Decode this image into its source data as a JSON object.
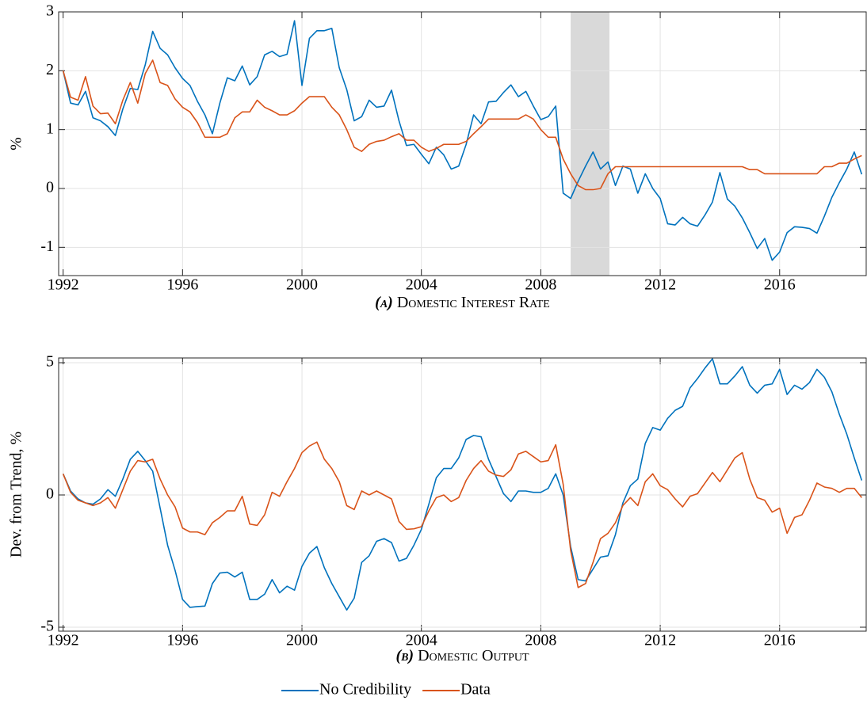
{
  "chart_data": [
    {
      "type": "line",
      "label": "(a)",
      "title": "Domestic Interest Rate",
      "ylabel": "%",
      "x": [
        1992,
        1992.25,
        1992.5,
        1992.75,
        1993,
        1993.25,
        1993.5,
        1993.75,
        1994,
        1994.25,
        1994.5,
        1994.75,
        1995,
        1995.25,
        1995.5,
        1995.75,
        1996,
        1996.25,
        1996.5,
        1996.75,
        1997,
        1997.25,
        1997.5,
        1997.75,
        1998,
        1998.25,
        1998.5,
        1998.75,
        1999,
        1999.25,
        1999.5,
        1999.75,
        2000,
        2000.25,
        2000.5,
        2000.75,
        2001,
        2001.25,
        2001.5,
        2001.75,
        2002,
        2002.25,
        2002.5,
        2002.75,
        2003,
        2003.25,
        2003.5,
        2003.75,
        2004,
        2004.25,
        2004.5,
        2004.75,
        2005,
        2005.25,
        2005.5,
        2005.75,
        2006,
        2006.25,
        2006.5,
        2006.75,
        2007,
        2007.25,
        2007.5,
        2007.75,
        2008,
        2008.25,
        2008.5,
        2008.75,
        2009,
        2009.25,
        2009.5,
        2009.75,
        2010,
        2010.25,
        2010.5,
        2010.75,
        2011,
        2011.25,
        2011.5,
        2011.75,
        2012,
        2012.25,
        2012.5,
        2012.75,
        2013,
        2013.25,
        2013.5,
        2013.75,
        2014,
        2014.25,
        2014.5,
        2014.75,
        2015,
        2015.25,
        2015.5,
        2015.75,
        2016,
        2016.25,
        2016.5,
        2016.75,
        2017,
        2017.25,
        2017.5,
        2017.75,
        2018,
        2018.25,
        2018.5,
        2018.75
      ],
      "series": [
        {
          "name": "No Credibility",
          "color": "#0072bd",
          "values": [
            2.0,
            1.45,
            1.42,
            1.65,
            1.2,
            1.15,
            1.05,
            0.9,
            1.35,
            1.7,
            1.68,
            2.1,
            2.67,
            2.38,
            2.27,
            2.05,
            1.87,
            1.75,
            1.48,
            1.25,
            0.93,
            1.45,
            1.88,
            1.83,
            2.08,
            1.76,
            1.9,
            2.27,
            2.33,
            2.24,
            2.28,
            2.85,
            1.75,
            2.55,
            2.68,
            2.68,
            2.72,
            2.05,
            1.68,
            1.15,
            1.22,
            1.5,
            1.38,
            1.4,
            1.67,
            1.15,
            0.73,
            0.75,
            0.58,
            0.42,
            0.7,
            0.57,
            0.33,
            0.38,
            0.75,
            1.25,
            1.1,
            1.47,
            1.48,
            1.63,
            1.76,
            1.56,
            1.65,
            1.4,
            1.17,
            1.22,
            1.4,
            -0.08,
            -0.17,
            0.12,
            0.38,
            0.62,
            0.33,
            0.45,
            0.05,
            0.38,
            0.33,
            -0.08,
            0.25,
            0.0,
            -0.17,
            -0.6,
            -0.62,
            -0.49,
            -0.6,
            -0.64,
            -0.45,
            -0.23,
            0.27,
            -0.18,
            -0.3,
            -0.5,
            -0.75,
            -1.02,
            -0.85,
            -1.22,
            -1.08,
            -0.75,
            -0.65,
            -0.66,
            -0.68,
            -0.76,
            -0.47,
            -0.15,
            0.1,
            0.33,
            0.62,
            0.24
          ]
        },
        {
          "name": "Data",
          "color": "#d95319",
          "values": [
            2.0,
            1.55,
            1.5,
            1.9,
            1.4,
            1.27,
            1.28,
            1.1,
            1.5,
            1.8,
            1.45,
            1.95,
            2.18,
            1.8,
            1.75,
            1.52,
            1.38,
            1.3,
            1.12,
            0.87,
            0.87,
            0.87,
            0.93,
            1.2,
            1.3,
            1.3,
            1.5,
            1.38,
            1.32,
            1.25,
            1.25,
            1.32,
            1.45,
            1.56,
            1.56,
            1.56,
            1.38,
            1.25,
            1.0,
            0.7,
            0.63,
            0.75,
            0.8,
            0.82,
            0.88,
            0.93,
            0.82,
            0.82,
            0.7,
            0.63,
            0.68,
            0.75,
            0.75,
            0.75,
            0.8,
            0.93,
            1.05,
            1.18,
            1.18,
            1.18,
            1.18,
            1.18,
            1.25,
            1.18,
            1.0,
            0.87,
            0.87,
            0.5,
            0.25,
            0.05,
            -0.02,
            -0.02,
            0.0,
            0.25,
            0.37,
            0.37,
            0.37,
            0.37,
            0.37,
            0.37,
            0.37,
            0.37,
            0.37,
            0.37,
            0.37,
            0.37,
            0.37,
            0.37,
            0.37,
            0.37,
            0.37,
            0.37,
            0.32,
            0.32,
            0.25,
            0.25,
            0.25,
            0.25,
            0.25,
            0.25,
            0.25,
            0.25,
            0.37,
            0.37,
            0.43,
            0.43,
            0.5,
            0.56
          ]
        }
      ],
      "shade": [
        2009,
        2010.3
      ],
      "xlim": [
        1991.85,
        2018.9
      ],
      "xticks": [
        1992,
        1996,
        2000,
        2004,
        2008,
        2012,
        2016
      ],
      "ylim": [
        -1.48,
        3
      ],
      "yticks": [
        -1,
        0,
        1,
        2,
        3
      ],
      "grid": true
    },
    {
      "type": "line",
      "label": "(b)",
      "title": "Domestic Output",
      "ylabel": "Dev. from Trend, %",
      "x": [
        1992,
        1992.25,
        1992.5,
        1992.75,
        1993,
        1993.25,
        1993.5,
        1993.75,
        1994,
        1994.25,
        1994.5,
        1994.75,
        1995,
        1995.25,
        1995.5,
        1995.75,
        1996,
        1996.25,
        1996.5,
        1996.75,
        1997,
        1997.25,
        1997.5,
        1997.75,
        1998,
        1998.25,
        1998.5,
        1998.75,
        1999,
        1999.25,
        1999.5,
        1999.75,
        2000,
        2000.25,
        2000.5,
        2000.75,
        2001,
        2001.25,
        2001.5,
        2001.75,
        2002,
        2002.25,
        2002.5,
        2002.75,
        2003,
        2003.25,
        2003.5,
        2003.75,
        2004,
        2004.25,
        2004.5,
        2004.75,
        2005,
        2005.25,
        2005.5,
        2005.75,
        2006,
        2006.25,
        2006.5,
        2006.75,
        2007,
        2007.25,
        2007.5,
        2007.75,
        2008,
        2008.25,
        2008.5,
        2008.75,
        2009,
        2009.25,
        2009.5,
        2009.75,
        2010,
        2010.25,
        2010.5,
        2010.75,
        2011,
        2011.25,
        2011.5,
        2011.75,
        2012,
        2012.25,
        2012.5,
        2012.75,
        2013,
        2013.25,
        2013.5,
        2013.75,
        2014,
        2014.25,
        2014.5,
        2014.75,
        2015,
        2015.25,
        2015.5,
        2015.75,
        2016,
        2016.25,
        2016.5,
        2016.75,
        2017,
        2017.25,
        2017.5,
        2017.75,
        2018,
        2018.25,
        2018.5,
        2018.75
      ],
      "series": [
        {
          "color": "#0072bd",
          "values": [
            0.8,
            0.15,
            -0.15,
            -0.3,
            -0.35,
            -0.15,
            0.2,
            -0.05,
            0.6,
            1.35,
            1.65,
            1.3,
            0.9,
            -0.5,
            -1.9,
            -2.85,
            -3.95,
            -4.25,
            -4.22,
            -4.2,
            -3.35,
            -2.95,
            -2.92,
            -3.1,
            -2.92,
            -3.95,
            -3.95,
            -3.75,
            -3.2,
            -3.7,
            -3.45,
            -3.6,
            -2.7,
            -2.2,
            -1.95,
            -2.75,
            -3.35,
            -3.85,
            -4.35,
            -3.9,
            -2.55,
            -2.3,
            -1.75,
            -1.65,
            -1.8,
            -2.5,
            -2.4,
            -1.9,
            -1.3,
            -0.35,
            0.65,
            1.0,
            1.0,
            1.4,
            2.1,
            2.25,
            2.2,
            1.35,
            0.7,
            0.05,
            -0.25,
            0.15,
            0.15,
            0.1,
            0.1,
            0.25,
            0.8,
            0.0,
            -1.95,
            -3.2,
            -3.25,
            -2.8,
            -2.35,
            -2.3,
            -1.5,
            -0.3,
            0.35,
            0.6,
            1.95,
            2.55,
            2.45,
            2.9,
            3.2,
            3.35,
            4.05,
            4.4,
            4.8,
            5.15,
            4.2,
            4.2,
            4.5,
            4.85,
            4.15,
            3.85,
            4.15,
            4.2,
            4.75,
            3.8,
            4.15,
            4.0,
            4.25,
            4.75,
            4.45,
            3.9,
            3.05,
            2.3,
            1.4,
            0.55
          ]
        },
        {
          "color": "#d95319",
          "values": [
            0.8,
            0.1,
            -0.2,
            -0.3,
            -0.4,
            -0.3,
            -0.1,
            -0.5,
            0.2,
            0.9,
            1.3,
            1.25,
            1.35,
            0.6,
            0.0,
            -0.45,
            -1.25,
            -1.4,
            -1.4,
            -1.5,
            -1.05,
            -0.85,
            -0.6,
            -0.6,
            -0.05,
            -1.1,
            -1.15,
            -0.75,
            0.1,
            -0.05,
            0.5,
            1.0,
            1.6,
            1.85,
            2.0,
            1.35,
            1.0,
            0.5,
            -0.4,
            -0.55,
            0.15,
            0.0,
            0.15,
            0.0,
            -0.15,
            -1.0,
            -1.3,
            -1.28,
            -1.2,
            -0.6,
            -0.1,
            0.0,
            -0.25,
            -0.1,
            0.55,
            1.0,
            1.3,
            0.9,
            0.75,
            0.7,
            0.95,
            1.55,
            1.65,
            1.45,
            1.25,
            1.3,
            1.9,
            0.4,
            -2.1,
            -3.5,
            -3.35,
            -2.55,
            -1.65,
            -1.45,
            -1.05,
            -0.4,
            -0.1,
            -0.4,
            0.5,
            0.8,
            0.35,
            0.2,
            -0.15,
            -0.45,
            -0.05,
            0.05,
            0.45,
            0.85,
            0.5,
            0.95,
            1.4,
            1.6,
            0.6,
            -0.1,
            -0.2,
            -0.65,
            -0.5,
            -1.45,
            -0.85,
            -0.75,
            -0.2,
            0.45,
            0.3,
            0.25,
            0.1,
            0.25,
            0.25,
            -0.1
          ]
        }
      ],
      "xlim": [
        1991.85,
        2018.9
      ],
      "xticks": [
        1992,
        1996,
        2000,
        2004,
        2008,
        2012,
        2016
      ],
      "ylim": [
        -5.15,
        5.18
      ],
      "yticks": [
        -5,
        0,
        5
      ],
      "grid": true
    }
  ]
}
